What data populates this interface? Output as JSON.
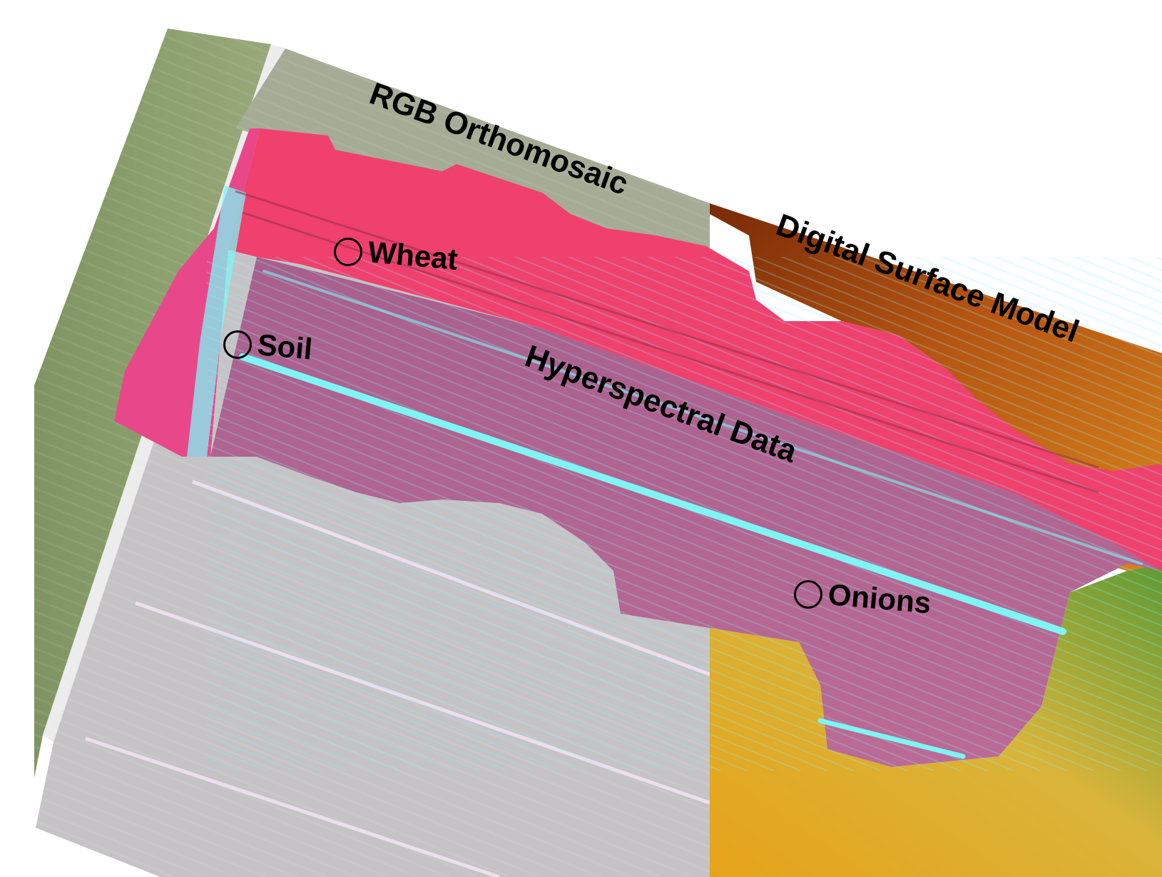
{
  "layers": {
    "rgb_label": "RGB Orthomosaic",
    "dsm_label": "Digital Surface Model",
    "hyperspectral_label": "Hyperspectral Data"
  },
  "markers": {
    "wheat": "Wheat",
    "soil": "Soil",
    "onions": "Onions"
  },
  "colors": {
    "rgb_field_green": "#8a9e6a",
    "rgb_field_grey": "#c9c7c9",
    "hyperspectral_pink": "#f0406e",
    "hyperspectral_purple": "#b45a86",
    "hyperspectral_cyan": "#7ff4f4",
    "dsm_brown": "#a0420f",
    "dsm_yellow": "#e0a820",
    "dsm_green": "#6c9e2e"
  }
}
